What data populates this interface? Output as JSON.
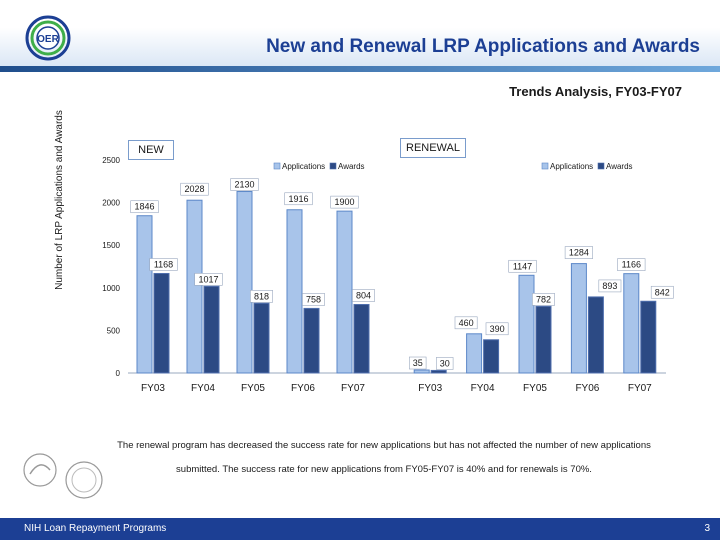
{
  "header": {
    "title": "New and Renewal LRP Applications and Awards",
    "logo_text": "OER"
  },
  "subtitle": "Trends Analysis, FY03-FY07",
  "colors": {
    "applications": "#a8c4ea",
    "applications_dark": "#5b87c8",
    "awards": "#2c4a84",
    "awards_light": "#4f6fae",
    "title": "#1c3f94"
  },
  "chart_data": [
    {
      "type": "bar",
      "panel_label": "NEW",
      "categories": [
        "FY03",
        "FY04",
        "FY05",
        "FY06",
        "FY07"
      ],
      "series": [
        {
          "name": "Applications",
          "values": [
            1846,
            2028,
            2130,
            1916,
            1900
          ]
        },
        {
          "name": "Awards",
          "values": [
            1168,
            1017,
            818,
            758,
            804
          ]
        }
      ],
      "ylabel": "Number of LRP Applications and Awards",
      "yticks": [
        0,
        500,
        1000,
        1500,
        2000,
        2500
      ],
      "ylim": [
        0,
        2500
      ]
    },
    {
      "type": "bar",
      "panel_label": "RENEWAL",
      "categories": [
        "FY03",
        "FY04",
        "FY05",
        "FY06",
        "FY07"
      ],
      "series": [
        {
          "name": "Applications",
          "values": [
            35,
            460,
            1147,
            1284,
            1166
          ]
        },
        {
          "name": "Awards",
          "values": [
            30,
            390,
            782,
            893,
            842
          ]
        }
      ],
      "ylim": [
        0,
        2500
      ]
    }
  ],
  "note": "The renewal program has decreased the success rate for new applications but has not affected  the number of new applications submitted. The success rate for new applications from FY05-FY07 is 40% and for renewals is 70%.",
  "footer": {
    "text": "NIH Loan Repayment Programs",
    "page": "3"
  }
}
